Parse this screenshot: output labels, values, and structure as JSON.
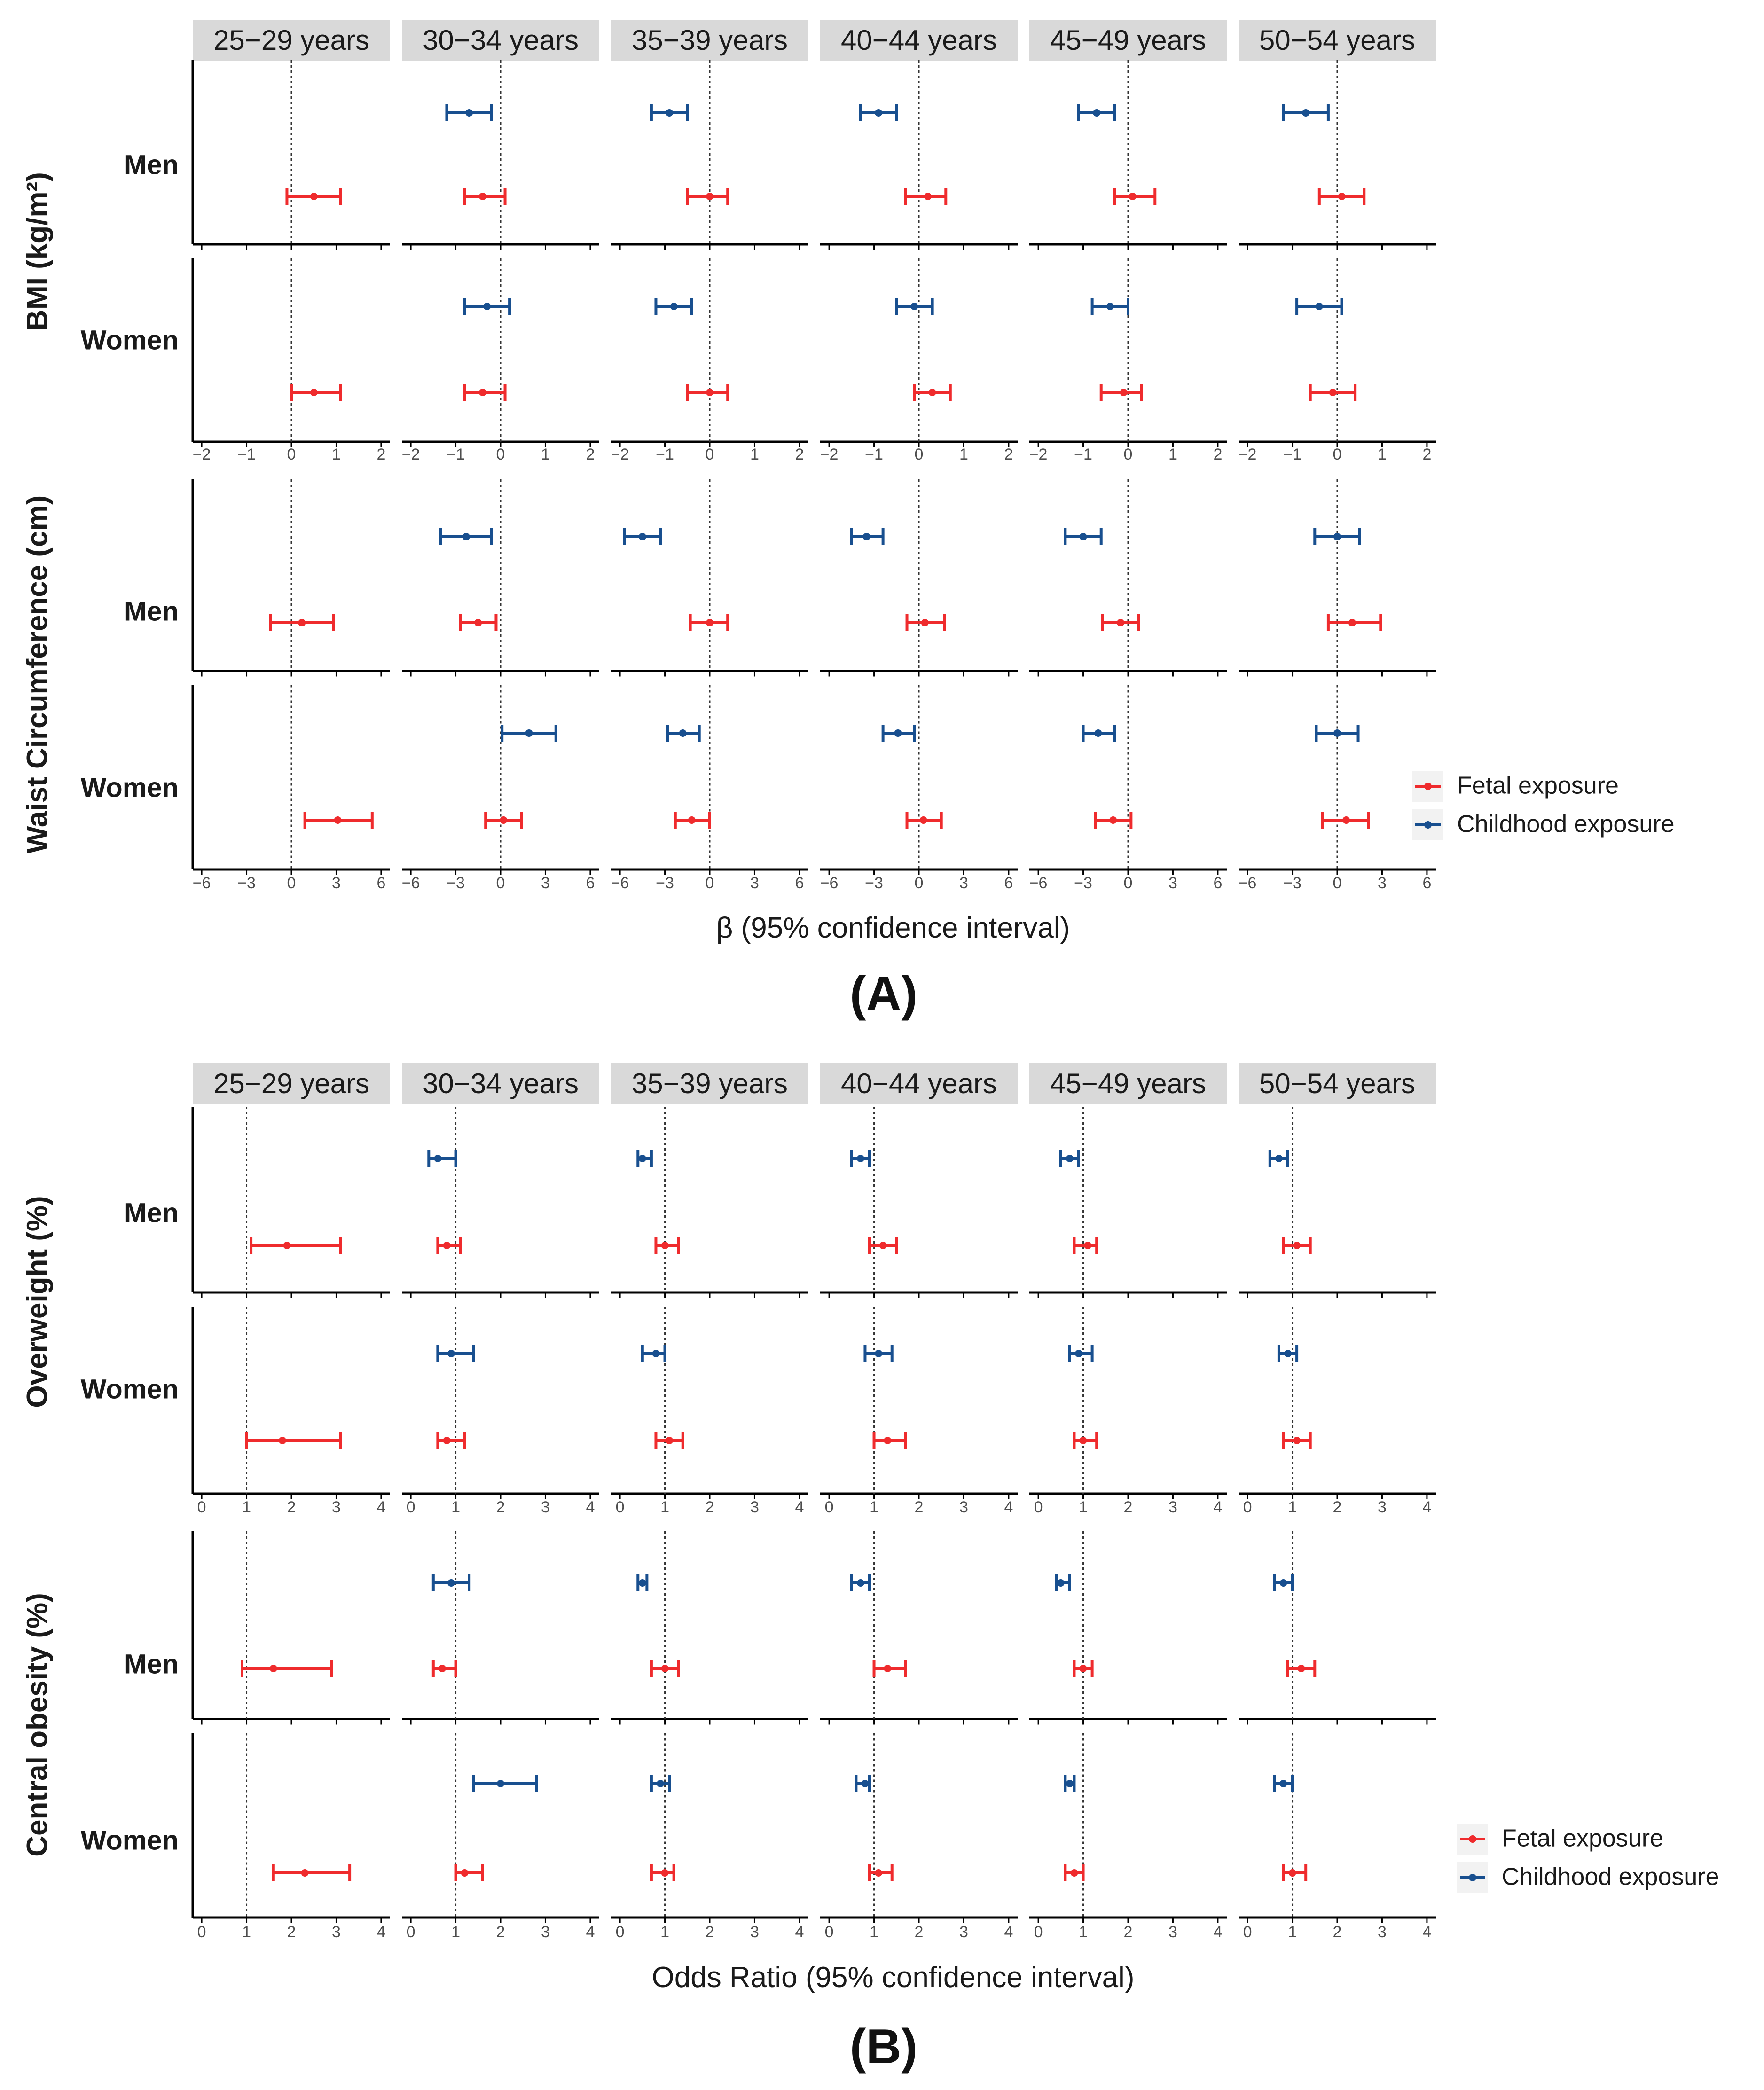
{
  "colors": {
    "fetal": "#ef2b2d",
    "childhood": "#184f8f"
  },
  "chart_data": [
    {
      "type": "forest",
      "panel_label": "(A)",
      "xlabel": "β (95% confidence interval)",
      "facets": [
        "25−29 years",
        "30−34 years",
        "35−39 years",
        "40−44 years",
        "45−49 years",
        "50−54 years"
      ],
      "legend": [
        "Fetal exposure",
        "Childhood exposure"
      ],
      "measures": [
        {
          "label": "BMI (kg/m²)",
          "xlim": [
            -2.2,
            2.2
          ],
          "ticks": [
            -2,
            -1,
            0,
            1,
            2
          ],
          "tick_labels": [
            "−2",
            "−1",
            "0",
            "1",
            "2"
          ],
          "ref": 0,
          "rows": [
            {
              "label": "Men",
              "series": [
                {
                  "name": "Childhood exposure",
                  "points": [
                    null,
                    [
                      -0.7,
                      -1.2,
                      -0.2
                    ],
                    [
                      -0.9,
                      -1.3,
                      -0.5
                    ],
                    [
                      -0.9,
                      -1.3,
                      -0.5
                    ],
                    [
                      -0.7,
                      -1.1,
                      -0.3
                    ],
                    [
                      -0.7,
                      -1.2,
                      -0.2
                    ]
                  ]
                },
                {
                  "name": "Fetal exposure",
                  "points": [
                    [
                      0.5,
                      -0.1,
                      1.1
                    ],
                    [
                      -0.4,
                      -0.8,
                      0.1
                    ],
                    [
                      0.0,
                      -0.5,
                      0.4
                    ],
                    [
                      0.2,
                      -0.3,
                      0.6
                    ],
                    [
                      0.1,
                      -0.3,
                      0.6
                    ],
                    [
                      0.1,
                      -0.4,
                      0.6
                    ]
                  ]
                }
              ]
            },
            {
              "label": "Women",
              "series": [
                {
                  "name": "Childhood exposure",
                  "points": [
                    null,
                    [
                      -0.3,
                      -0.8,
                      0.2
                    ],
                    [
                      -0.8,
                      -1.2,
                      -0.4
                    ],
                    [
                      -0.1,
                      -0.5,
                      0.3
                    ],
                    [
                      -0.4,
                      -0.8,
                      0.0
                    ],
                    [
                      -0.4,
                      -0.9,
                      0.1
                    ]
                  ]
                },
                {
                  "name": "Fetal exposure",
                  "points": [
                    [
                      0.5,
                      0.0,
                      1.1
                    ],
                    [
                      -0.4,
                      -0.8,
                      0.1
                    ],
                    [
                      0.0,
                      -0.5,
                      0.4
                    ],
                    [
                      0.3,
                      -0.1,
                      0.7
                    ],
                    [
                      -0.1,
                      -0.6,
                      0.3
                    ],
                    [
                      -0.1,
                      -0.6,
                      0.4
                    ]
                  ]
                }
              ]
            }
          ]
        },
        {
          "label": "Waist Circumference (cm)",
          "xlim": [
            -6.6,
            6.6
          ],
          "ticks": [
            -6,
            -3,
            0,
            3,
            6
          ],
          "tick_labels": [
            "−6",
            "−3",
            "0",
            "3",
            "6"
          ],
          "ref": 0,
          "rows": [
            {
              "label": "Men",
              "series": [
                {
                  "name": "Childhood exposure",
                  "points": [
                    null,
                    [
                      -2.3,
                      -4.0,
                      -0.6
                    ],
                    [
                      -4.5,
                      -5.7,
                      -3.3
                    ],
                    [
                      -3.5,
                      -4.5,
                      -2.4
                    ],
                    [
                      -3.0,
                      -4.2,
                      -1.8
                    ],
                    [
                      0.0,
                      -1.5,
                      1.5
                    ]
                  ]
                },
                {
                  "name": "Fetal exposure",
                  "points": [
                    [
                      0.7,
                      -1.4,
                      2.8
                    ],
                    [
                      -1.5,
                      -2.7,
                      -0.3
                    ],
                    [
                      0.0,
                      -1.3,
                      1.2
                    ],
                    [
                      0.4,
                      -0.8,
                      1.7
                    ],
                    [
                      -0.5,
                      -1.7,
                      0.7
                    ],
                    [
                      1.0,
                      -0.6,
                      2.9
                    ]
                  ]
                }
              ]
            },
            {
              "label": "Women",
              "series": [
                {
                  "name": "Childhood exposure",
                  "points": [
                    null,
                    [
                      1.9,
                      0.1,
                      3.7
                    ],
                    [
                      -1.8,
                      -2.8,
                      -0.7
                    ],
                    [
                      -1.4,
                      -2.4,
                      -0.3
                    ],
                    [
                      -2.0,
                      -3.0,
                      -0.9
                    ],
                    [
                      0.0,
                      -1.4,
                      1.4
                    ]
                  ]
                },
                {
                  "name": "Fetal exposure",
                  "points": [
                    [
                      3.1,
                      0.9,
                      5.4
                    ],
                    [
                      0.2,
                      -1.0,
                      1.4
                    ],
                    [
                      -1.2,
                      -2.3,
                      0.0
                    ],
                    [
                      0.3,
                      -0.8,
                      1.5
                    ],
                    [
                      -1.0,
                      -2.2,
                      0.2
                    ],
                    [
                      0.6,
                      -1.0,
                      2.1
                    ]
                  ]
                }
              ]
            }
          ]
        }
      ]
    },
    {
      "type": "forest",
      "panel_label": "(B)",
      "xlabel": "Odds Ratio (95% confidence interval)",
      "facets": [
        "25−29 years",
        "30−34 years",
        "35−39 years",
        "40−44 years",
        "45−49 years",
        "50−54 years"
      ],
      "legend": [
        "Fetal exposure",
        "Childhood exposure"
      ],
      "measures": [
        {
          "label": "Overweight (%)",
          "xlim": [
            -0.2,
            4.2
          ],
          "ticks": [
            0,
            1,
            2,
            3,
            4
          ],
          "tick_labels": [
            "0",
            "1",
            "2",
            "3",
            "4"
          ],
          "ref": 1,
          "rows": [
            {
              "label": "Men",
              "series": [
                {
                  "name": "Childhood exposure",
                  "points": [
                    null,
                    [
                      0.6,
                      0.4,
                      1.0
                    ],
                    [
                      0.5,
                      0.4,
                      0.7
                    ],
                    [
                      0.7,
                      0.5,
                      0.9
                    ],
                    [
                      0.7,
                      0.5,
                      0.9
                    ],
                    [
                      0.7,
                      0.5,
                      0.9
                    ]
                  ]
                },
                {
                  "name": "Fetal exposure",
                  "points": [
                    [
                      1.9,
                      1.1,
                      3.1
                    ],
                    [
                      0.8,
                      0.6,
                      1.1
                    ],
                    [
                      1.0,
                      0.8,
                      1.3
                    ],
                    [
                      1.2,
                      0.9,
                      1.5
                    ],
                    [
                      1.1,
                      0.8,
                      1.3
                    ],
                    [
                      1.1,
                      0.8,
                      1.4
                    ]
                  ]
                }
              ]
            },
            {
              "label": "Women",
              "series": [
                {
                  "name": "Childhood exposure",
                  "points": [
                    null,
                    [
                      0.9,
                      0.6,
                      1.4
                    ],
                    [
                      0.8,
                      0.5,
                      1.0
                    ],
                    [
                      1.1,
                      0.8,
                      1.4
                    ],
                    [
                      0.9,
                      0.7,
                      1.2
                    ],
                    [
                      0.9,
                      0.7,
                      1.1
                    ]
                  ]
                },
                {
                  "name": "Fetal exposure",
                  "points": [
                    [
                      1.8,
                      1.0,
                      3.1
                    ],
                    [
                      0.8,
                      0.6,
                      1.2
                    ],
                    [
                      1.1,
                      0.8,
                      1.4
                    ],
                    [
                      1.3,
                      1.0,
                      1.7
                    ],
                    [
                      1.0,
                      0.8,
                      1.3
                    ],
                    [
                      1.1,
                      0.8,
                      1.4
                    ]
                  ]
                }
              ]
            }
          ]
        },
        {
          "label": "Central obesity (%)",
          "xlim": [
            -0.2,
            4.2
          ],
          "ticks": [
            0,
            1,
            2,
            3,
            4
          ],
          "tick_labels": [
            "0",
            "1",
            "2",
            "3",
            "4"
          ],
          "ref": 1,
          "rows": [
            {
              "label": "Men",
              "series": [
                {
                  "name": "Childhood exposure",
                  "points": [
                    null,
                    [
                      0.9,
                      0.5,
                      1.3
                    ],
                    [
                      0.5,
                      0.4,
                      0.6
                    ],
                    [
                      0.7,
                      0.5,
                      0.9
                    ],
                    [
                      0.5,
                      0.4,
                      0.7
                    ],
                    [
                      0.8,
                      0.6,
                      1.0
                    ]
                  ]
                },
                {
                  "name": "Fetal exposure",
                  "points": [
                    [
                      1.6,
                      0.9,
                      2.9
                    ],
                    [
                      0.7,
                      0.5,
                      1.0
                    ],
                    [
                      1.0,
                      0.7,
                      1.3
                    ],
                    [
                      1.3,
                      1.0,
                      1.7
                    ],
                    [
                      1.0,
                      0.8,
                      1.2
                    ],
                    [
                      1.2,
                      0.9,
                      1.5
                    ]
                  ]
                }
              ]
            },
            {
              "label": "Women",
              "series": [
                {
                  "name": "Childhood exposure",
                  "points": [
                    null,
                    [
                      2.0,
                      1.4,
                      2.8
                    ],
                    [
                      0.9,
                      0.7,
                      1.1
                    ],
                    [
                      0.8,
                      0.6,
                      0.9
                    ],
                    [
                      0.7,
                      0.6,
                      0.8
                    ],
                    [
                      0.8,
                      0.6,
                      1.0
                    ]
                  ]
                },
                {
                  "name": "Fetal exposure",
                  "points": [
                    [
                      2.3,
                      1.6,
                      3.3
                    ],
                    [
                      1.2,
                      1.0,
                      1.6
                    ],
                    [
                      1.0,
                      0.7,
                      1.2
                    ],
                    [
                      1.1,
                      0.9,
                      1.4
                    ],
                    [
                      0.8,
                      0.6,
                      1.0
                    ],
                    [
                      1.0,
                      0.8,
                      1.3
                    ]
                  ]
                }
              ]
            }
          ]
        }
      ]
    }
  ]
}
